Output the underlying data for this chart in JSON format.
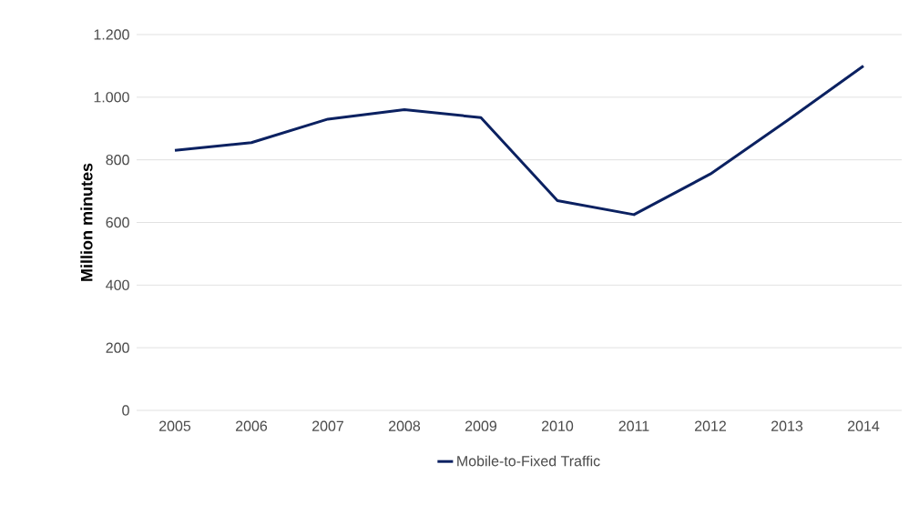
{
  "chart_data": {
    "type": "line",
    "ylabel": "Million minutes",
    "categories": [
      "2005",
      "2006",
      "2007",
      "2008",
      "2009",
      "2010",
      "2011",
      "2012",
      "2013",
      "2014"
    ],
    "series": [
      {
        "name": "Mobile-to-Fixed Traffic",
        "color": "#0b2161",
        "values": [
          830,
          855,
          930,
          960,
          935,
          670,
          625,
          755,
          925,
          1100
        ]
      }
    ],
    "ylim": [
      0,
      1200
    ],
    "yticks": [
      0,
      200,
      400,
      600,
      800,
      {
        "value": 1000,
        "label": "1.000"
      },
      {
        "value": 1200,
        "label": "1.200"
      }
    ],
    "grid": "y",
    "legend": "bottom",
    "marker": "none",
    "line_style": "solid"
  }
}
